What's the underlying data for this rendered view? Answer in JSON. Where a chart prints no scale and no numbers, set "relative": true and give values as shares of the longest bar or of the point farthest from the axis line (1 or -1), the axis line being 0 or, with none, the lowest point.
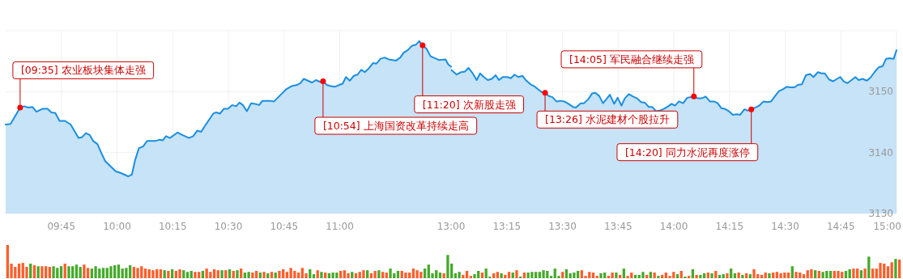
{
  "chart_data": [
    {
      "type": "area",
      "color": "#1a8fe0",
      "tick_labels": "x",
      "x": [
        9.5,
        9.522,
        9.565,
        9.583,
        9.602,
        9.62,
        9.638,
        9.667,
        9.688,
        9.705,
        9.723,
        9.742,
        9.767,
        9.792,
        9.827,
        9.842,
        9.86,
        9.877,
        9.893,
        9.912,
        9.93,
        9.947,
        9.972,
        9.995,
        10.013,
        10.038,
        10.05,
        10.067,
        10.08,
        10.098,
        10.117,
        10.135,
        10.172,
        10.19,
        10.205,
        10.22,
        10.238,
        10.272,
        10.293,
        10.323,
        10.342,
        10.36,
        10.378,
        10.395,
        10.432,
        10.445,
        10.463,
        10.48,
        10.498,
        10.517,
        10.535,
        10.55,
        10.565,
        10.583,
        10.602,
        10.62,
        10.638,
        10.653,
        10.687,
        10.705,
        10.735,
        10.76,
        10.783,
        10.808,
        10.823,
        10.838,
        10.857,
        10.875,
        10.893,
        10.912,
        10.925,
        10.942,
        10.96,
        10.978,
        10.997,
        11.013,
        11.028,
        11.045,
        11.063,
        11.08,
        11.097,
        11.112,
        11.13,
        11.15,
        11.165,
        11.183,
        11.202,
        11.22,
        11.238,
        11.253,
        11.272,
        11.287,
        11.305,
        11.323,
        11.342,
        11.357,
        11.372,
        11.39,
        11.408,
        11.427,
        11.445,
        11.475,
        11.487,
        11.5
      ],
      "values": [
        3144.6,
        3144.7,
        3147.4,
        3147.6,
        3147.4,
        3147.5,
        3146.7,
        3147.2,
        3147.2,
        3146.6,
        3146.5,
        3145.2,
        3145.2,
        3144.6,
        3142.4,
        3142.5,
        3143.2,
        3142.9,
        3141.9,
        3141.4,
        3139.9,
        3138.6,
        3137.7,
        3136.9,
        3136.7,
        3136.3,
        3136.1,
        3136.4,
        3138.6,
        3140.7,
        3141.0,
        3141.9,
        3141.9,
        3142.1,
        3142.0,
        3142.7,
        3142.4,
        3143.3,
        3142.9,
        3142.4,
        3142.7,
        3143.6,
        3143.4,
        3144.4,
        3146.4,
        3146.6,
        3146.4,
        3147.2,
        3147.2,
        3147.8,
        3147.6,
        3148.2,
        3147.8,
        3146.8,
        3148.1,
        3148.0,
        3147.8,
        3148.5,
        3148.5,
        3148.4,
        3149.5,
        3150.4,
        3150.9,
        3151.1,
        3151.4,
        3152.1,
        3151.8,
        3151.5,
        3151.9,
        3151.6,
        3151.7,
        3151.1,
        3150.9,
        3150.8,
        3151.1,
        3151.3,
        3152.4,
        3151.8,
        3152.6,
        3152.8,
        3153.6,
        3153.2,
        3153.8,
        3154.7,
        3154.6,
        3155.4,
        3155.6,
        3155.3,
        3155.2,
        3155.1,
        3155.6,
        3156.4,
        3156.8,
        3157.5,
        3157.7,
        3158.3,
        3157.6,
        3157.0,
        3155.8,
        3155.5,
        3155.2,
        3155.3,
        3154.5,
        3154.1
      ],
      "xlim": [
        9.5,
        11.5
      ],
      "xticks": [
        {
          "value": 9.75,
          "label": "09:45"
        },
        {
          "value": 10,
          "label": "10:00"
        },
        {
          "value": 10.25,
          "label": "10:15"
        },
        {
          "value": 10.5,
          "label": "10:30"
        },
        {
          "value": 10.75,
          "label": "10:45"
        },
        {
          "value": 11,
          "label": "11:00"
        }
      ],
      "ylim": [
        3130,
        3160
      ],
      "yticks": [
        3130,
        3140,
        3150,
        {
          "value": 3160,
          "label": null
        }
      ],
      "grid": true,
      "annotations": [
        {
          "text": "[09:35] 农业板块集体走强",
          "x": 9.565,
          "y": 3147.4
        },
        {
          "text": "[10:54] 上海国资改革持续走高",
          "x": 10.925,
          "y": 3151.7
        },
        {
          "text": "[11:20] 次新股走强",
          "x": 11.372,
          "y": 3157.6
        }
      ]
    },
    {
      "type": "area",
      "color": "#1a8fe0",
      "x": [
        13,
        13.025,
        13.045,
        13.062,
        13.078,
        13.097,
        13.115,
        13.13,
        13.147,
        13.165,
        13.183,
        13.2,
        13.215,
        13.232,
        13.253,
        13.268,
        13.285,
        13.302,
        13.32,
        13.338,
        13.357,
        13.373,
        13.39,
        13.408,
        13.422,
        13.438,
        13.455,
        13.473,
        13.492,
        13.508,
        13.527,
        13.547,
        13.56,
        13.582,
        13.597,
        13.617,
        13.633,
        13.648,
        13.665,
        13.682,
        13.698,
        13.713,
        13.732,
        13.748,
        13.765,
        13.78,
        13.798,
        13.817,
        13.835,
        13.853,
        13.87,
        13.887,
        13.903,
        13.92,
        13.938,
        13.957,
        13.975,
        13.99,
        14.005,
        14.023,
        14.042,
        14.06,
        14.078,
        14.09,
        14.108,
        14.125,
        14.143,
        14.162,
        14.18,
        14.197,
        14.213,
        14.228,
        14.247,
        14.265,
        14.283,
        14.298,
        14.317,
        14.332,
        14.348,
        14.367,
        14.383,
        14.403,
        14.42,
        14.437,
        14.453,
        14.472,
        14.49,
        14.507,
        14.523,
        14.542,
        14.557,
        14.575,
        14.593,
        14.612,
        14.627,
        14.647,
        14.663,
        14.678,
        14.697,
        14.715,
        14.733,
        14.747,
        14.763,
        14.78,
        14.798,
        14.815,
        14.83,
        14.848,
        14.867,
        14.885,
        14.903,
        14.92,
        14.938,
        14.953,
        14.968,
        14.987,
        15
      ],
      "values": [
        3153.6,
        3152.8,
        3153.2,
        3153.3,
        3153.9,
        3153.0,
        3151.9,
        3153.0,
        3152.4,
        3151.9,
        3152.1,
        3152.7,
        3151.9,
        3152.4,
        3152.4,
        3152.2,
        3152.8,
        3152.4,
        3152.6,
        3151.8,
        3151.2,
        3150.9,
        3150.4,
        3149.9,
        3149.8,
        3149.3,
        3149.1,
        3148.4,
        3148.5,
        3148.4,
        3148.0,
        3147.5,
        3147.4,
        3148.1,
        3148.1,
        3148.8,
        3149.7,
        3149.8,
        3149.3,
        3148.1,
        3148.8,
        3149.5,
        3148.0,
        3149.0,
        3147.7,
        3148.9,
        3149.6,
        3149.2,
        3148.9,
        3148.3,
        3148.2,
        3147.5,
        3147.5,
        3146.8,
        3146.9,
        3147.2,
        3147.6,
        3148.0,
        3147.7,
        3148.4,
        3148.1,
        3149.0,
        3149.1,
        3149.2,
        3148.9,
        3148.9,
        3149.2,
        3148.4,
        3148.4,
        3148.1,
        3147.3,
        3147.2,
        3146.8,
        3146.2,
        3146.3,
        3146.2,
        3147.1,
        3146.9,
        3147.1,
        3147.4,
        3147.7,
        3148.4,
        3148.3,
        3148.4,
        3149.2,
        3150.1,
        3150.4,
        3150.8,
        3150.7,
        3150.7,
        3151.1,
        3151.2,
        3152.7,
        3152.9,
        3152.4,
        3153.2,
        3153.0,
        3153.0,
        3152.0,
        3151.7,
        3152.1,
        3152.4,
        3151.7,
        3151.4,
        3151.9,
        3152.4,
        3151.9,
        3152.1,
        3151.8,
        3152.4,
        3153.3,
        3154.0,
        3154.2,
        3155.4,
        3155.5,
        3155.4,
        3156.8
      ],
      "xlim": [
        13,
        15
      ],
      "xticks": [
        {
          "value": 13,
          "label": "13:00"
        },
        {
          "value": 13.25,
          "label": "13:15"
        },
        {
          "value": 13.5,
          "label": "13:30"
        },
        {
          "value": 13.75,
          "label": "13:45"
        },
        {
          "value": 14,
          "label": "14:00"
        },
        {
          "value": 14.25,
          "label": "14:15"
        },
        {
          "value": 14.5,
          "label": "14:30"
        },
        {
          "value": 14.75,
          "label": "14:45"
        },
        {
          "value": 15,
          "label": "15:00"
        }
      ],
      "ylim": [
        3130,
        3160
      ],
      "yticks": [
        3130,
        3140,
        3150,
        {
          "value": 3160,
          "label": null
        }
      ],
      "grid": true,
      "annotations": [
        {
          "text": "[13:26] 水泥建材个股拉升",
          "x": 13.422,
          "y": 3149.8
        },
        {
          "text": "[14:05] 军民融合继续走强",
          "x": 14.09,
          "y": 3149.2
        },
        {
          "text": "[14:20] 同力水泥再度涨停",
          "x": 14.348,
          "y": 3147.1
        }
      ]
    },
    {
      "type": "bar",
      "relative": true,
      "categories": [
        null,
        null,
        null,
        null,
        null,
        null,
        null,
        null,
        null,
        null,
        null,
        null,
        null,
        null,
        null,
        null,
        null,
        null,
        null,
        null,
        null,
        null,
        null,
        null,
        null,
        null,
        null,
        null,
        null,
        null,
        null,
        null,
        null,
        null,
        null,
        null,
        null,
        null,
        null,
        null,
        null,
        null,
        null,
        null,
        null,
        null,
        null,
        null,
        null,
        null,
        null,
        null,
        null,
        null,
        null,
        null,
        null,
        null,
        null,
        null,
        null,
        null,
        null,
        null,
        null,
        null,
        null,
        null,
        null,
        null,
        null,
        null,
        null,
        null,
        null,
        null,
        null,
        null,
        null,
        null,
        null,
        null,
        null,
        null,
        null,
        null,
        null,
        null,
        null,
        null,
        null,
        null,
        null,
        null,
        null,
        null,
        null,
        null,
        null,
        null,
        null,
        null,
        null,
        null,
        null,
        null,
        null,
        null,
        null,
        null,
        null,
        null,
        null,
        null,
        null,
        null,
        null,
        null,
        null,
        null,
        null,
        null,
        null,
        null,
        null,
        null,
        null,
        null,
        null,
        null,
        null,
        null,
        null,
        null,
        null,
        null,
        null,
        null,
        null,
        null,
        null,
        null,
        null,
        null,
        null,
        null,
        null,
        null,
        null,
        null,
        null,
        null,
        null,
        null,
        null,
        null,
        null,
        null,
        null,
        null,
        null,
        null,
        null,
        null,
        null,
        null,
        null,
        null,
        null,
        null,
        null,
        null,
        null,
        null,
        null,
        null,
        null,
        null,
        null,
        null,
        null,
        null,
        null,
        null,
        null,
        null,
        null,
        null,
        null,
        null,
        null,
        null,
        null,
        null,
        null,
        null,
        null,
        null,
        null,
        null,
        null,
        null,
        null,
        null,
        null,
        null,
        null,
        null,
        null,
        null,
        null,
        null,
        null,
        null,
        null,
        null,
        null,
        null,
        null,
        null,
        null,
        null,
        null,
        null,
        null,
        null,
        null,
        null,
        null,
        null,
        null,
        null,
        null,
        null
      ],
      "values": [
        1.0,
        0.44,
        0.34,
        0.44,
        0.46,
        0.34,
        0.44,
        0.39,
        0.36,
        0.36,
        0.36,
        0.34,
        0.36,
        0.31,
        0.36,
        0.44,
        0.36,
        0.36,
        0.41,
        0.34,
        0.41,
        0.31,
        0.29,
        0.36,
        0.29,
        0.31,
        0.31,
        0.36,
        0.39,
        0.41,
        0.29,
        0.31,
        0.39,
        0.34,
        0.31,
        0.36,
        0.29,
        0.27,
        0.24,
        0.27,
        0.27,
        0.24,
        0.22,
        0.27,
        0.22,
        0.27,
        0.24,
        0.19,
        0.22,
        0.19,
        0.19,
        0.22,
        0.29,
        0.19,
        0.27,
        0.24,
        0.24,
        0.24,
        0.27,
        0.22,
        0.24,
        0.29,
        0.17,
        0.19,
        0.17,
        0.22,
        0.17,
        0.19,
        0.15,
        0.19,
        0.17,
        0.22,
        0.27,
        0.19,
        0.31,
        0.22,
        0.17,
        0.31,
        0.15,
        0.27,
        0.12,
        0.24,
        0.19,
        0.17,
        0.15,
        0.17,
        0.17,
        0.22,
        0.24,
        0.15,
        0.19,
        0.15,
        0.19,
        0.24,
        0.24,
        0.15,
        0.22,
        0.24,
        0.19,
        0.17,
        0.29,
        0.15,
        0.22,
        0.22,
        0.17,
        0.17,
        0.29,
        0.24,
        0.19,
        0.29,
        0.41,
        0.15,
        0.24,
        0.17,
        0.15,
        0.7,
        0.44,
        0.15,
        0.19,
        0.1,
        0.22,
        0.07,
        0.12,
        0.22,
        0.17,
        0.29,
        0.05,
        0.15,
        0.19,
        0.15,
        0.1,
        0.19,
        0.17,
        0.24,
        0.05,
        0.17,
        0.17,
        0.19,
        0.19,
        0.19,
        0.24,
        0.22,
        0.07,
        0.29,
        0.07,
        0.19,
        0.27,
        0.15,
        0.17,
        0.22,
        0.24,
        0.07,
        0.19,
        0.17,
        0.07,
        0.15,
        0.17,
        0.07,
        0.17,
        0.17,
        0.1,
        0.29,
        0.07,
        0.17,
        0.1,
        0.1,
        0.19,
        0.1,
        0.19,
        0.17,
        0.07,
        0.1,
        0.17,
        0.07,
        0.19,
        0.12,
        0.22,
        0.05,
        0.07,
        0.27,
        0.1,
        0.1,
        0.15,
        0.17,
        0.15,
        0.22,
        0.1,
        0.12,
        0.15,
        0.29,
        0.15,
        0.17,
        0.1,
        0.15,
        0.12,
        0.27,
        0.12,
        0.1,
        0.17,
        0.15,
        0.17,
        0.19,
        0.15,
        0.17,
        0.17,
        0.36,
        0.19,
        0.17,
        0.12,
        0.24,
        0.27,
        0.24,
        0.22,
        0.19,
        0.22,
        0.22,
        0.22,
        0.22,
        0.19,
        0.22,
        0.27,
        0.29,
        0.29,
        0.24,
        0.29,
        0.65,
        0.29,
        0.29,
        0.46,
        0.44,
        0.36,
        0.48,
        0.58,
        0.56
      ],
      "colors": [
        "#ff5e2b",
        "#ff5e2b",
        "#ff5e2b",
        "#ff5e2b",
        "#ff5e2b",
        "#ff5e2b",
        "#47a92c",
        "#ff5e2b",
        "#47a92c",
        "#ff5e2b",
        "#ff5e2b",
        "#ff5e2b",
        "#47a92c",
        "#47a92c",
        "#47a92c",
        "#ff5e2b",
        "#47a92c",
        "#47a92c",
        "#47a92c",
        "#47a92c",
        "#ff5e2b",
        "#ff5e2b",
        "#47a92c",
        "#47a92c",
        "#47a92c",
        "#47a92c",
        "#47a92c",
        "#47a92c",
        "#47a92c",
        "#47a92c",
        "#47a92c",
        "#47a92c",
        "#47a92c",
        "#ff5e2b",
        "#ff5e2b",
        "#ff5e2b",
        "#ff5e2b",
        "#ff5e2b",
        "#ff5e2b",
        "#ff5e2b",
        "#ff5e2b",
        "#47a92c",
        "#ff5e2b",
        "#47a92c",
        "#ff5e2b",
        "#ff5e2b",
        "#47a92c",
        "#47a92c",
        "#47a92c",
        "#ff5e2b",
        "#ff5e2b",
        "#47a92c",
        "#ff5e2b",
        "#ff5e2b",
        "#ff5e2b",
        "#ff5e2b",
        "#47a92c",
        "#ff5e2b",
        "#47a92c",
        "#ff5e2b",
        "#47a92c",
        "#ff5e2b",
        "#47a92c",
        "#47a92c",
        "#ff5e2b",
        "#ff5e2b",
        "#47a92c",
        "#ff5e2b",
        "#47a92c",
        "#ff5e2b",
        "#47a92c",
        "#ff5e2b",
        "#ff5e2b",
        "#ff5e2b",
        "#ff5e2b",
        "#ff5e2b",
        "#ff5e2b",
        "#ff5e2b",
        "#ff5e2b",
        "#47a92c",
        "#47a92c",
        "#ff5e2b",
        "#47a92c",
        "#ff5e2b",
        "#47a92c",
        "#47a92c",
        "#47a92c",
        "#ff5e2b",
        "#ff5e2b",
        "#ff5e2b",
        "#47a92c",
        "#ff5e2b",
        "#ff5e2b",
        "#ff5e2b",
        "#47a92c",
        "#ff5e2b",
        "#ff5e2b",
        "#47a92c",
        "#ff5e2b",
        "#ff5e2b",
        "#47a92c",
        "#47a92c",
        "#47a92c",
        "#ff5e2b",
        "#ff5e2b",
        "#ff5e2b",
        "#ff5e2b",
        "#ff5e2b",
        "#ff5e2b",
        "#47a92c",
        "#47a92c",
        "#47a92c",
        "#47a92c",
        "#47a92c",
        "#ff5e2b",
        "#47a92c",
        "#47a92c",
        "#47a92c",
        "#47a92c",
        "#ff5e2b",
        "#ff5e2b",
        "#ff5e2b",
        "#47a92c",
        "#47a92c",
        "#ff5e2b",
        "#47a92c",
        "#47a92c",
        "#ff5e2b",
        "#ff5e2b",
        "#47a92c",
        "#ff5e2b",
        "#ff5e2b",
        "#47a92c",
        "#ff5e2b",
        "#47a92c",
        "#ff5e2b",
        "#47a92c",
        "#47a92c",
        "#47a92c",
        "#47a92c",
        "#47a92c",
        "#47a92c",
        "#47a92c",
        "#47a92c",
        "#47a92c",
        "#ff5e2b",
        "#47a92c",
        "#47a92c",
        "#47a92c",
        "#47a92c",
        "#ff5e2b",
        "#ff5e2b",
        "#ff5e2b",
        "#ff5e2b",
        "#ff5e2b",
        "#47a92c",
        "#47a92c",
        "#ff5e2b",
        "#ff5e2b",
        "#47a92c",
        "#ff5e2b",
        "#47a92c",
        "#ff5e2b",
        "#ff5e2b",
        "#47a92c",
        "#47a92c",
        "#47a92c",
        "#ff5e2b",
        "#47a92c",
        "#ff5e2b",
        "#47a92c",
        "#ff5e2b",
        "#ff5e2b",
        "#ff5e2b",
        "#ff5e2b",
        "#47a92c",
        "#ff5e2b",
        "#47a92c",
        "#ff5e2b",
        "#47a92c",
        "#ff5e2b",
        "#47a92c",
        "#47a92c",
        "#ff5e2b",
        "#47a92c",
        "#ff5e2b",
        "#47a92c",
        "#47a92c",
        "#ff5e2b",
        "#47a92c",
        "#47a92c",
        "#ff5e2b",
        "#47a92c",
        "#ff5e2b",
        "#47a92c",
        "#ff5e2b",
        "#ff5e2b",
        "#ff5e2b",
        "#ff5e2b",
        "#47a92c",
        "#ff5e2b",
        "#ff5e2b",
        "#ff5e2b",
        "#ff5e2b",
        "#ff5e2b",
        "#47a92c",
        "#ff5e2b",
        "#ff5e2b",
        "#ff5e2b",
        "#ff5e2b",
        "#ff5e2b",
        "#47a92c",
        "#ff5e2b",
        "#47a92c",
        "#47a92c",
        "#47a92c",
        "#ff5e2b",
        "#ff5e2b",
        "#ff5e2b",
        "#47a92c",
        "#47a92c",
        "#ff5e2b",
        "#ff5e2b",
        "#47a92c",
        "#ff5e2b",
        "#47a92c",
        "#ff5e2b",
        "#ff5e2b",
        "#ff5e2b",
        "#ff5e2b",
        "#ff5e2b",
        "#ff5e2b",
        "#47a92c",
        "#ff5e2b"
      ]
    }
  ]
}
